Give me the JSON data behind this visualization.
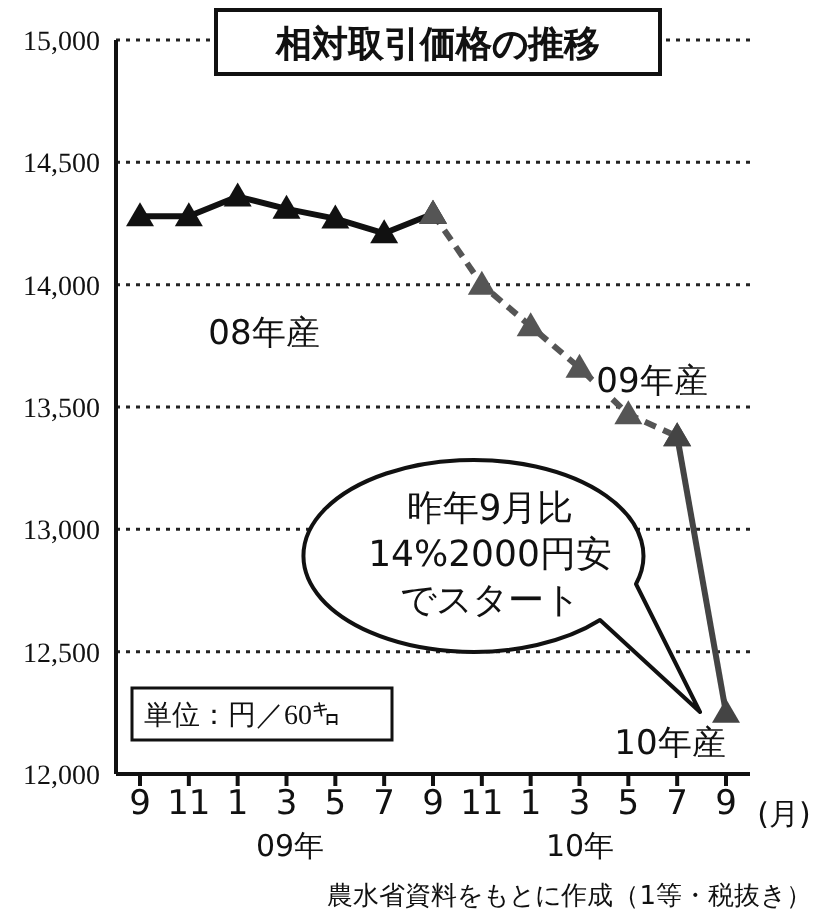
{
  "chart_data": {
    "type": "line",
    "title": "相対取引価格の推移",
    "xlabel": "(月)",
    "categories": [
      "9",
      "11",
      "1",
      "3",
      "5",
      "7",
      "9",
      "11",
      "1",
      "3",
      "5",
      "7",
      "9"
    ],
    "series": [
      {
        "name": "08年産",
        "color": "#111111",
        "line_style": "solid",
        "values": [
          14280,
          14280,
          14360,
          14310,
          14270,
          14210,
          14290,
          null,
          null,
          null,
          null,
          null,
          null
        ]
      },
      {
        "name": "09年産",
        "color": "#555555",
        "line_style": "dashed",
        "values": [
          null,
          null,
          null,
          null,
          null,
          null,
          14290,
          14000,
          13830,
          13660,
          13470,
          13380,
          null
        ]
      },
      {
        "name": "10年産",
        "color": "#444444",
        "line_style": "solid",
        "values": [
          null,
          null,
          null,
          null,
          null,
          null,
          null,
          null,
          null,
          null,
          null,
          13380,
          12250
        ]
      }
    ],
    "ylim": [
      12000,
      15000
    ],
    "yticks": [
      {
        "value": 12000,
        "label": "12,000"
      },
      {
        "value": 12500,
        "label": "12,500"
      },
      {
        "value": 13000,
        "label": "13,000"
      },
      {
        "value": 13500,
        "label": "13,500"
      },
      {
        "value": 14000,
        "label": "14,000"
      },
      {
        "value": 14500,
        "label": "14,500"
      },
      {
        "value": 15000,
        "label": "15,000"
      }
    ],
    "grid": "y",
    "marker": "triangle",
    "annotations": [
      "09年",
      "10年",
      "農水省資料をもとに作成（1等・税抜き）",
      "単位：円／60㌔",
      "昨年9月比",
      "14%2000円安",
      "でスタート"
    ]
  }
}
